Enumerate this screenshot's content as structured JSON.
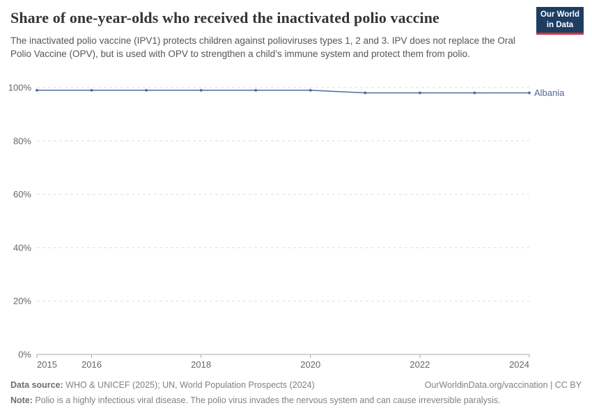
{
  "header": {
    "title": "Share of one-year-olds who received the inactivated polio vaccine",
    "subtitle": "The inactivated polio vaccine (IPV1) protects children against polioviruses types 1, 2 and 3. IPV does not replace the Oral Polio Vaccine (OPV), but is used with OPV to strengthen a child’s immune system and protect them from polio.",
    "logo": {
      "line1": "Our World",
      "line2": "in Data",
      "background_color": "#1d3d63",
      "stripe_color": "#d7373f"
    }
  },
  "chart_data": {
    "type": "line",
    "title": "Share of one-year-olds who received the inactivated polio vaccine",
    "x": [
      2015,
      2016,
      2017,
      2018,
      2019,
      2020,
      2021,
      2022,
      2023,
      2024
    ],
    "series": [
      {
        "name": "Albania",
        "values": [
          99,
          99,
          99,
          99,
          99,
          99,
          98,
          98,
          98,
          98
        ],
        "color": "#4c6a9c"
      }
    ],
    "ylim": [
      0,
      100
    ],
    "yticks": [
      0,
      20,
      40,
      60,
      80,
      100
    ],
    "ytick_suffix": "%",
    "xticks": [
      2015,
      2016,
      2018,
      2020,
      2022,
      2024
    ],
    "grid": "horizontal-dashed",
    "grid_color": "#dedede",
    "axis_color": "#a9a9a9",
    "legend_position": "end-of-line-label"
  },
  "footer": {
    "source_label": "Data source:",
    "source_text": " WHO & UNICEF (2025); UN, World Population Prospects (2024)",
    "attribution": "OurWorldinData.org/vaccination | CC BY",
    "note_label": "Note:",
    "note_text": " Polio is a highly infectious viral disease. The polio virus invades the nervous system and can cause irreversible paralysis."
  }
}
